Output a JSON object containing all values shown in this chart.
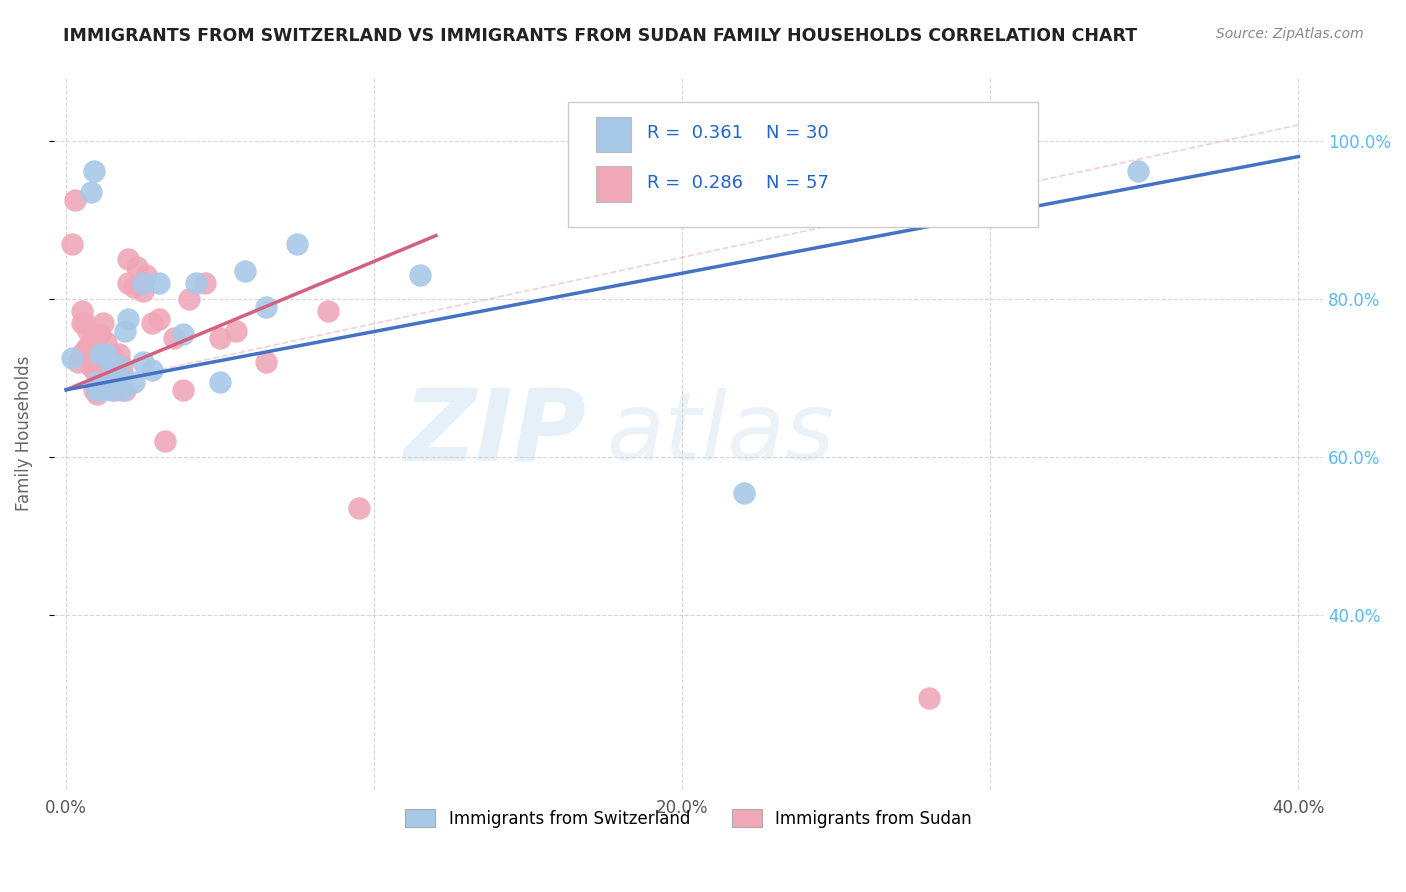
{
  "title": "IMMIGRANTS FROM SWITZERLAND VS IMMIGRANTS FROM SUDAN FAMILY HOUSEHOLDS CORRELATION CHART",
  "source": "Source: ZipAtlas.com",
  "ylabel": "Family Households",
  "watermark_zip": "ZIP",
  "watermark_atlas": "atlas",
  "legend_r1": "0.361",
  "legend_n1": "30",
  "legend_r2": "0.286",
  "legend_n2": "57",
  "blue_color": "#a8c8e8",
  "pink_color": "#f0a8b8",
  "blue_line_color": "#4472c4",
  "pink_line_color": "#d46080",
  "dashed_line_color": "#e8b0c0",
  "grid_color": "#cccccc",
  "right_axis_color": "#5bb8f5",
  "switzerland_points_x": [
    0.002,
    0.008,
    0.009,
    0.01,
    0.01,
    0.011,
    0.012,
    0.013,
    0.014,
    0.015,
    0.015,
    0.016,
    0.017,
    0.018,
    0.019,
    0.02,
    0.022,
    0.025,
    0.025,
    0.028,
    0.03,
    0.038,
    0.042,
    0.05,
    0.058,
    0.065,
    0.075,
    0.115,
    0.22,
    0.348
  ],
  "switzerland_points_y": [
    0.725,
    0.935,
    0.962,
    0.695,
    0.685,
    0.73,
    0.685,
    0.73,
    0.69,
    0.685,
    0.715,
    0.695,
    0.715,
    0.685,
    0.76,
    0.775,
    0.695,
    0.72,
    0.82,
    0.71,
    0.82,
    0.755,
    0.82,
    0.695,
    0.835,
    0.79,
    0.87,
    0.83,
    0.555,
    0.962
  ],
  "sudan_points_x": [
    0.002,
    0.003,
    0.004,
    0.005,
    0.005,
    0.005,
    0.006,
    0.006,
    0.007,
    0.007,
    0.007,
    0.008,
    0.008,
    0.008,
    0.009,
    0.009,
    0.009,
    0.01,
    0.01,
    0.01,
    0.01,
    0.011,
    0.011,
    0.012,
    0.012,
    0.013,
    0.013,
    0.014,
    0.014,
    0.015,
    0.015,
    0.016,
    0.016,
    0.016,
    0.017,
    0.018,
    0.018,
    0.019,
    0.02,
    0.02,
    0.022,
    0.023,
    0.025,
    0.026,
    0.028,
    0.03,
    0.032,
    0.035,
    0.038,
    0.04,
    0.045,
    0.05,
    0.055,
    0.065,
    0.085,
    0.095,
    0.28
  ],
  "sudan_points_y": [
    0.87,
    0.925,
    0.72,
    0.77,
    0.73,
    0.785,
    0.735,
    0.77,
    0.73,
    0.76,
    0.74,
    0.745,
    0.715,
    0.73,
    0.745,
    0.685,
    0.71,
    0.69,
    0.715,
    0.71,
    0.68,
    0.755,
    0.685,
    0.77,
    0.72,
    0.745,
    0.705,
    0.715,
    0.7,
    0.73,
    0.725,
    0.715,
    0.685,
    0.72,
    0.73,
    0.715,
    0.705,
    0.685,
    0.85,
    0.82,
    0.815,
    0.84,
    0.81,
    0.83,
    0.77,
    0.775,
    0.62,
    0.75,
    0.685,
    0.8,
    0.82,
    0.75,
    0.76,
    0.72,
    0.785,
    0.535,
    0.295
  ],
  "sw_line_x": [
    0.0,
    0.4
  ],
  "sw_line_y": [
    0.685,
    0.98
  ],
  "sd_line_x": [
    0.0,
    0.12
  ],
  "sd_line_y": [
    0.685,
    0.88
  ],
  "dashed_line_x": [
    0.0,
    0.4
  ],
  "dashed_line_y": [
    0.685,
    1.02
  ],
  "xlim_min": -0.004,
  "xlim_max": 0.408,
  "ylim_min": 0.18,
  "ylim_max": 1.08,
  "yticks": [
    0.4,
    0.6,
    0.8,
    1.0
  ],
  "ytick_labels": [
    "40.0%",
    "60.0%",
    "80.0%",
    "100.0%"
  ],
  "xticks": [
    0.0,
    0.1,
    0.2,
    0.3,
    0.4
  ],
  "xtick_labels": [
    "0.0%",
    "",
    "20.0%",
    "",
    "40.0%"
  ]
}
